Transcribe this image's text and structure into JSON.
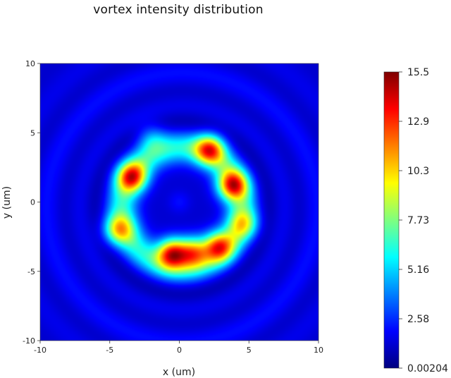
{
  "chart_data": {
    "type": "heatmap",
    "title": "vortex intensity distribution",
    "xlabel": "x (um)",
    "ylabel": "y (um)",
    "xlim": [
      -10,
      10
    ],
    "ylim": [
      -10,
      10
    ],
    "x_ticks": [
      "-10",
      "-5",
      "0",
      "5",
      "10"
    ],
    "y_ticks": [
      "10",
      "5",
      "0",
      "-5",
      "-10"
    ],
    "colormap": "jet",
    "colorbar": {
      "min": 0.00204,
      "max": 15.5,
      "ticks": [
        "15.5",
        "12.9",
        "10.3",
        "7.73",
        "5.16",
        "2.58",
        "0.00204"
      ]
    },
    "background_level": 1.2,
    "ring": {
      "center": [
        0.2,
        -0.4
      ],
      "radius": 4.3,
      "width": 1.15,
      "level": 4.8
    },
    "hot_spots": [
      {
        "x": -3.4,
        "y": 1.8,
        "value": 13.5
      },
      {
        "x": 2.2,
        "y": 3.8,
        "value": 13.2
      },
      {
        "x": 3.8,
        "y": 1.2,
        "value": 14.0
      },
      {
        "x": 4.6,
        "y": -1.6,
        "value": 9.5
      },
      {
        "x": 2.8,
        "y": -3.2,
        "value": 13.0
      },
      {
        "x": 1.0,
        "y": -3.6,
        "value": 12.5
      },
      {
        "x": -0.5,
        "y": -3.7,
        "value": 15.0
      },
      {
        "x": -4.4,
        "y": -2.0,
        "value": 11.0
      },
      {
        "x": -2.0,
        "y": 4.6,
        "value": 7.5
      }
    ],
    "colors": {
      "low": "#00007f",
      "mid_low": "#0080ff",
      "mid": "#7fff7f",
      "mid_high": "#ff8000",
      "high": "#7f0000"
    }
  }
}
